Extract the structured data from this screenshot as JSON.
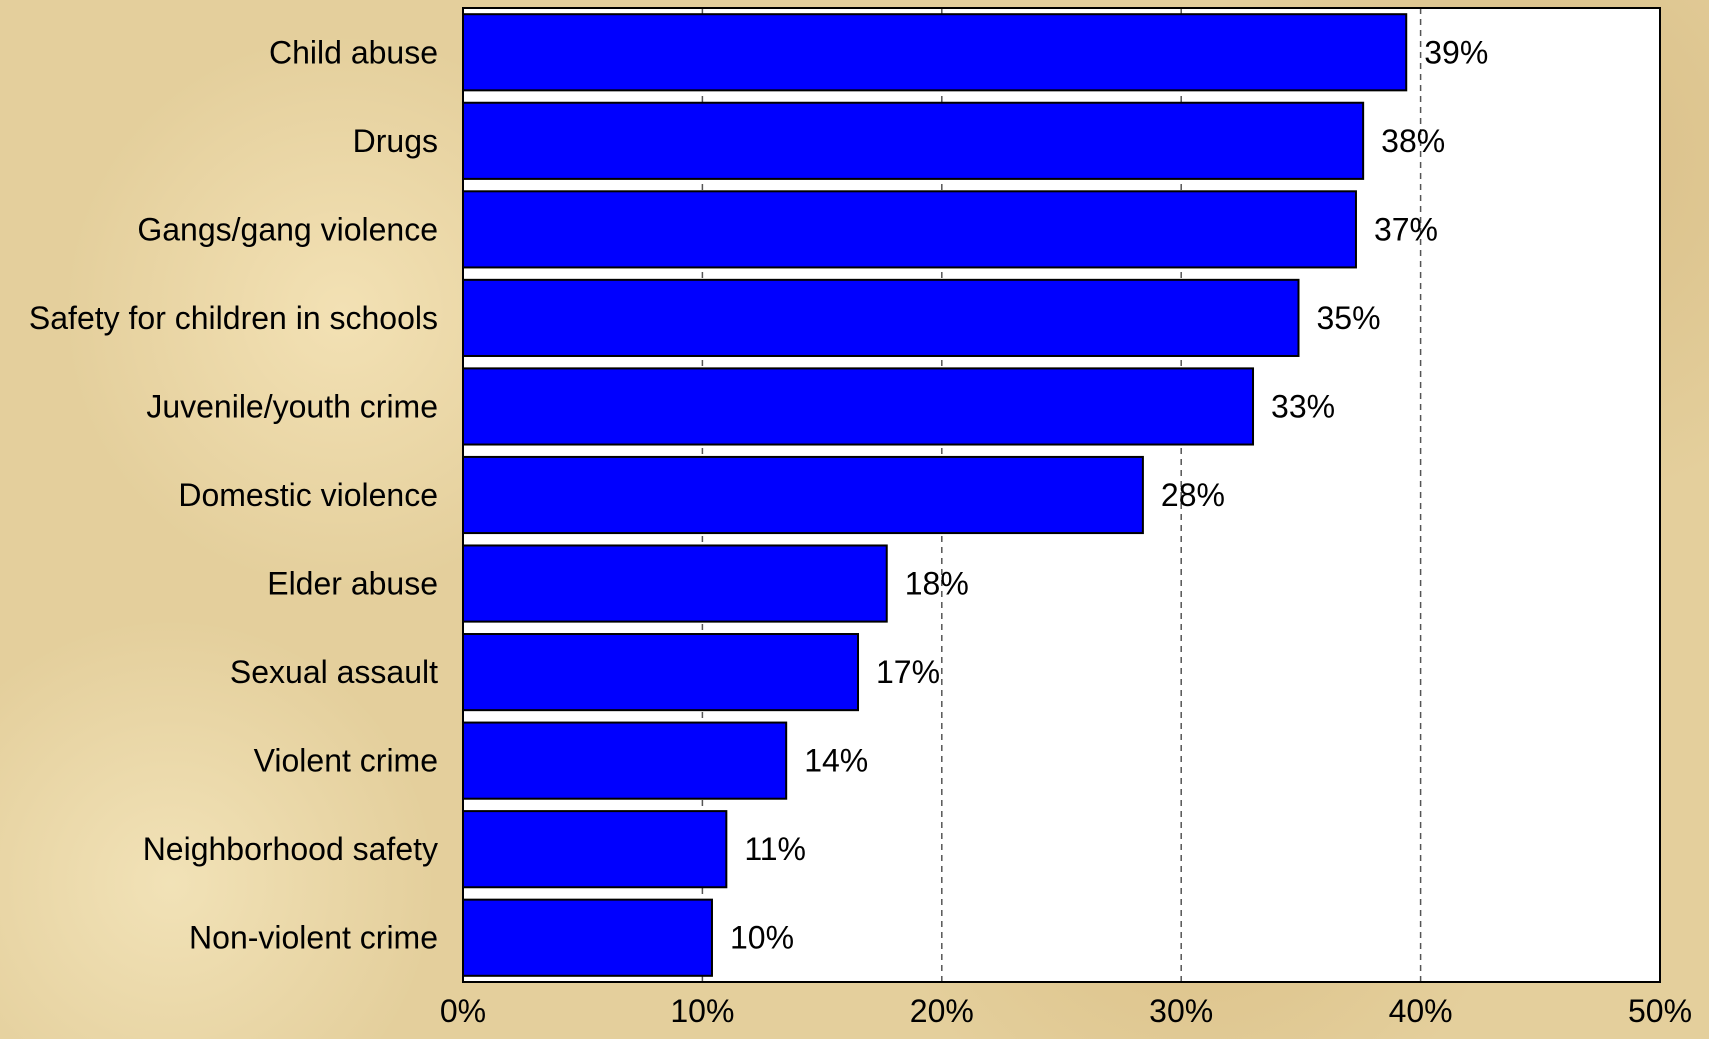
{
  "chart_data": {
    "type": "bar",
    "orientation": "horizontal",
    "categories": [
      "Child abuse",
      "Drugs",
      "Gangs/gang violence",
      "Safety for children in schools",
      "Juvenile/youth crime",
      "Domestic violence",
      "Elder abuse",
      "Sexual assault",
      "Violent crime",
      "Neighborhood safety",
      "Non-violent crime"
    ],
    "values": [
      39.4,
      37.6,
      37.3,
      34.9,
      33.0,
      28.4,
      17.7,
      16.5,
      13.5,
      11.0,
      10.4
    ],
    "value_labels": [
      "39%",
      "38%",
      "37%",
      "35%",
      "33%",
      "28%",
      "18%",
      "17%",
      "14%",
      "11%",
      "10%"
    ],
    "xlim": [
      0,
      50
    ],
    "xticks": [
      0,
      10,
      20,
      30,
      40,
      50
    ],
    "xtick_labels": [
      "0%",
      "10%",
      "20%",
      "30%",
      "40%",
      "50%"
    ],
    "grid": "vertical dashed",
    "title": "",
    "xlabel": "",
    "ylabel": "",
    "bar_color": "#0000ff",
    "plot_background": "#ffffff"
  }
}
